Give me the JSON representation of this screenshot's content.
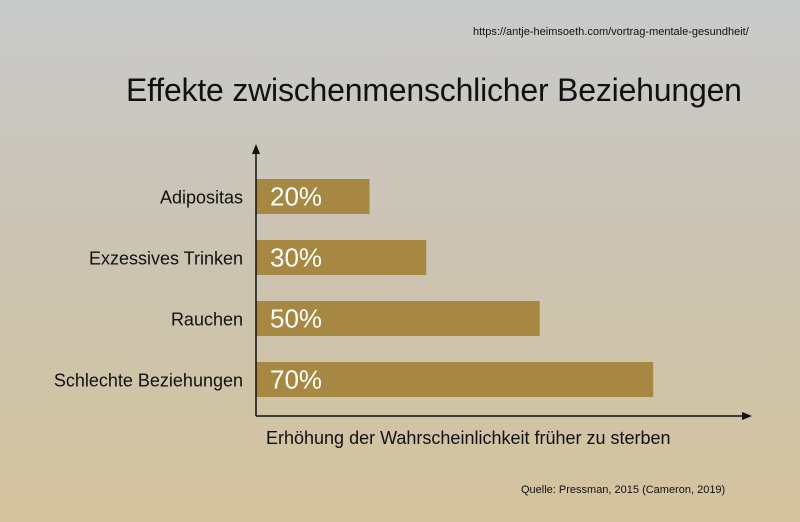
{
  "source_url": "https://antje-heimsoeth.com/vortrag-mentale-gesundheit/",
  "credit": "Quelle: Pressman, 2015 (Cameron, 2019)",
  "colors": {
    "bar": "#a68843",
    "bar_label": "#ffffff",
    "axis": "#111111"
  },
  "chart_data": {
    "type": "bar",
    "orientation": "horizontal",
    "title": "Effekte zwischenmenschlicher Beziehungen",
    "xlabel": "Erhöhung der Wahrscheinlichkeit früher zu sterben",
    "ylabel": "",
    "categories": [
      "Adipositas",
      "Exzessives Trinken",
      "Rauchen",
      "Schlechte Beziehungen"
    ],
    "values": [
      20,
      30,
      50,
      70
    ],
    "value_labels": [
      "20%",
      "30%",
      "50%",
      "70%"
    ],
    "unit": "%",
    "xlim": [
      0,
      86
    ],
    "grid": false,
    "legend": "none"
  }
}
